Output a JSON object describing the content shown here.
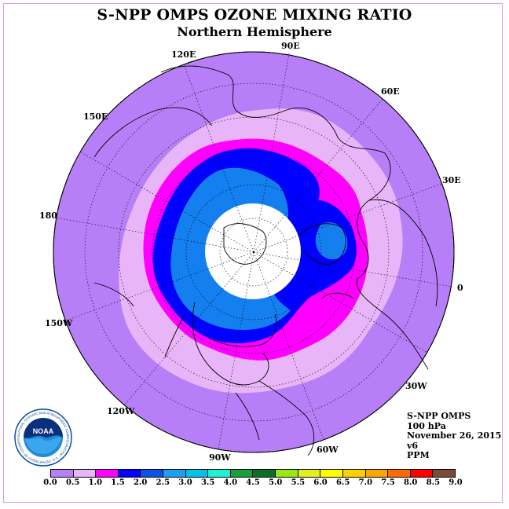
{
  "header": {
    "title": "S-NPP OMPS OZONE MIXING RATIO",
    "subtitle": "Northern Hemisphere"
  },
  "longitude_labels": {
    "e120": "120E",
    "e90": "90E",
    "e60": "60E",
    "e150": "150E",
    "e30": "30E",
    "d180": "180",
    "zero": "0",
    "w150": "150W",
    "w30": "30W",
    "w120": "120W",
    "w60": "60W",
    "w90": "90W"
  },
  "info": {
    "instrument": "S-NPP OMPS",
    "level": "100 hPa",
    "date": "November 26, 2015",
    "version": "v6",
    "units": "PPM"
  },
  "logo": {
    "name": "noaa-logo",
    "text": "NOAA",
    "ring_text": "NATIONAL OCEANIC AND ATMOSPHERIC ADMINISTRATION · U.S. DEPARTMENT OF COMMERCE"
  },
  "colorbar": {
    "ticks": [
      "0.0",
      "0.5",
      "1.0",
      "1.5",
      "2.0",
      "2.5",
      "3.0",
      "3.5",
      "4.0",
      "4.5",
      "5.0",
      "5.5",
      "6.0",
      "6.5",
      "7.0",
      "7.5",
      "8.0",
      "8.5",
      "9.0"
    ],
    "colors": [
      "#b77ff7",
      "#e8b6f8",
      "#ff00ff",
      "#0000ff",
      "#0a52e8",
      "#1aa0f2",
      "#00c2e8",
      "#1cf2d4",
      "#16a13c",
      "#0c6e2a",
      "#96ea12",
      "#e2f01e",
      "#ffff00",
      "#ffd100",
      "#ffa500",
      "#ff6a00",
      "#ff0000",
      "#7e4a33"
    ]
  },
  "map_colors": {
    "outside_bg": "#b77ff7",
    "band_0_5": "#e8b6f8",
    "band_1_0": "#ff00ff",
    "band_1_5": "#0000ff",
    "band_2_0": "#1480f0",
    "pole_gap": "#ffffff",
    "coast": "#000000"
  }
}
